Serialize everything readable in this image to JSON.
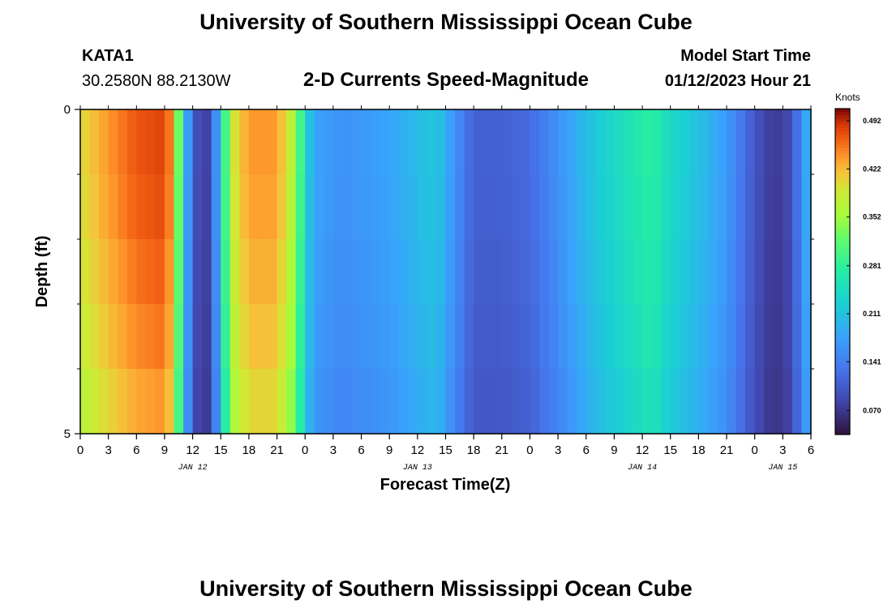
{
  "page": {
    "title": "University of Southern Mississippi Ocean Cube",
    "station": "KATA1",
    "coords": "30.2580N  88.2130W",
    "subtitle": "2-D Currents Speed-Magnitude",
    "model_start_label": "Model Start Time",
    "model_start_value": "01/12/2023 Hour 21",
    "footer_title": "University of Southern Mississippi Ocean Cube"
  },
  "chart_data": {
    "type": "heatmap",
    "title": "2-D Currents Speed-Magnitude",
    "xlabel": "Forecast Time(Z)",
    "ylabel": "Depth (ft)",
    "colorbar_units": "Knots",
    "xlim": [
      0,
      78
    ],
    "ylim": [
      0,
      5
    ],
    "x_tick_values": [
      0,
      3,
      6,
      9,
      12,
      15,
      18,
      21,
      24,
      27,
      30,
      33,
      36,
      39,
      42,
      45,
      48,
      51,
      54,
      57,
      60,
      63,
      66,
      69,
      72,
      75,
      78
    ],
    "x_tick_labels": [
      "0",
      "3",
      "6",
      "9",
      "12",
      "15",
      "18",
      "21",
      "0",
      "3",
      "6",
      "9",
      "12",
      "15",
      "18",
      "21",
      "0",
      "3",
      "6",
      "9",
      "12",
      "15",
      "18",
      "21",
      "0",
      "3",
      "6"
    ],
    "date_labels": [
      {
        "label": "JAN 12",
        "x": 12
      },
      {
        "label": "JAN 13",
        "x": 36
      },
      {
        "label": "JAN 14",
        "x": 60
      },
      {
        "label": "JAN 15",
        "x": 75
      }
    ],
    "y_tick_values": [
      0,
      5
    ],
    "y_tick_labels": [
      "0",
      "5"
    ],
    "colorbar_ticks": [
      "0.492",
      "0.422",
      "0.352",
      "0.281",
      "0.211",
      "0.141",
      "0.070"
    ],
    "colorbar_tick_values": [
      0.492,
      0.422,
      0.352,
      0.281,
      0.211,
      0.141,
      0.07
    ],
    "color_range": [
      0.035,
      0.51
    ],
    "n_depth_rows": 5,
    "time_step_hours": 1,
    "surface_speed_profile": [
      {
        "hour": 0,
        "value": 0.4
      },
      {
        "hour": 3,
        "value": 0.44
      },
      {
        "hour": 6,
        "value": 0.47
      },
      {
        "hour": 9,
        "value": 0.48
      },
      {
        "hour": 10,
        "value": 0.43
      },
      {
        "hour": 11,
        "value": 0.22
      },
      {
        "hour": 12,
        "value": 0.12
      },
      {
        "hour": 13,
        "value": 0.06
      },
      {
        "hour": 14,
        "value": 0.1
      },
      {
        "hour": 15,
        "value": 0.22
      },
      {
        "hour": 16,
        "value": 0.38
      },
      {
        "hour": 18,
        "value": 0.44
      },
      {
        "hour": 21,
        "value": 0.44
      },
      {
        "hour": 23,
        "value": 0.35
      },
      {
        "hour": 24,
        "value": 0.24
      },
      {
        "hour": 25,
        "value": 0.18
      },
      {
        "hour": 28,
        "value": 0.16
      },
      {
        "hour": 33,
        "value": 0.18
      },
      {
        "hour": 38,
        "value": 0.22
      },
      {
        "hour": 40,
        "value": 0.16
      },
      {
        "hour": 42,
        "value": 0.11
      },
      {
        "hour": 45,
        "value": 0.11
      },
      {
        "hour": 48,
        "value": 0.12
      },
      {
        "hour": 51,
        "value": 0.16
      },
      {
        "hour": 55,
        "value": 0.22
      },
      {
        "hour": 59,
        "value": 0.26
      },
      {
        "hour": 61,
        "value": 0.28
      },
      {
        "hour": 63,
        "value": 0.24
      },
      {
        "hour": 66,
        "value": 0.21
      },
      {
        "hour": 69,
        "value": 0.17
      },
      {
        "hour": 72,
        "value": 0.1
      },
      {
        "hour": 74,
        "value": 0.07
      },
      {
        "hour": 76,
        "value": 0.09
      },
      {
        "hour": 77,
        "value": 0.16
      },
      {
        "hour": 78,
        "value": 0.21
      }
    ],
    "depth_factors": [
      1.0,
      0.99,
      0.97,
      0.95,
      0.92
    ]
  }
}
